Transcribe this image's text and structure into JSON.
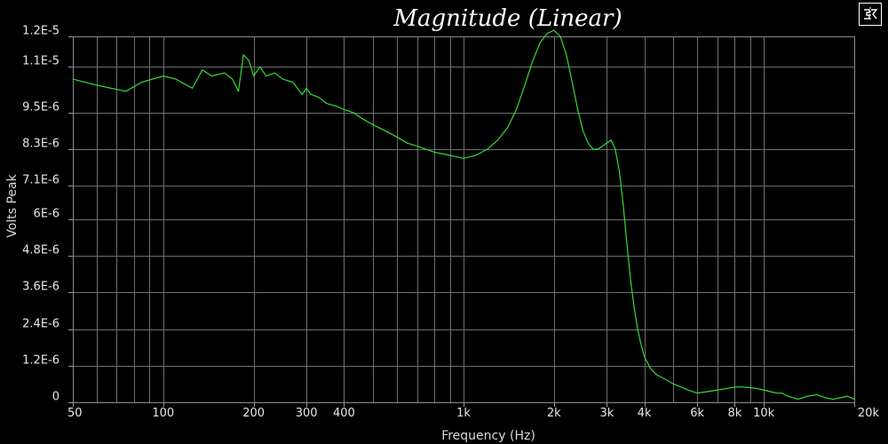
{
  "chart_data": {
    "type": "line",
    "title": "Magnitude (Linear)",
    "xlabel": "Frequency (Hz)",
    "ylabel": "Volts Peak",
    "xscale": "log",
    "xlim": [
      50,
      20000
    ],
    "ylim": [
      0,
      1.2e-05
    ],
    "grid": true,
    "x_ticks_labeled": [
      {
        "value": 50,
        "label": "50"
      },
      {
        "value": 100,
        "label": "100"
      },
      {
        "value": 200,
        "label": "200"
      },
      {
        "value": 300,
        "label": "300"
      },
      {
        "value": 400,
        "label": "400"
      },
      {
        "value": 1000,
        "label": "1k"
      },
      {
        "value": 2000,
        "label": "2k"
      },
      {
        "value": 3000,
        "label": "3k"
      },
      {
        "value": 4000,
        "label": "4k"
      },
      {
        "value": 6000,
        "label": "6k"
      },
      {
        "value": 8000,
        "label": "8k"
      },
      {
        "value": 10000,
        "label": "10k"
      },
      {
        "value": 20000,
        "label": "20k"
      }
    ],
    "x_gridlines": [
      50,
      60,
      70,
      80,
      90,
      100,
      200,
      300,
      400,
      500,
      600,
      700,
      800,
      900,
      1000,
      2000,
      3000,
      4000,
      5000,
      6000,
      7000,
      8000,
      9000,
      10000,
      20000
    ],
    "y_ticks": [
      {
        "value": 0,
        "label": "0"
      },
      {
        "value": 1.2e-06,
        "label": "1.2E-6"
      },
      {
        "value": 2.4e-06,
        "label": "2.4E-6"
      },
      {
        "value": 3.6e-06,
        "label": "3.6E-6"
      },
      {
        "value": 4.8e-06,
        "label": "4.8E-6"
      },
      {
        "value": 6e-06,
        "label": "6E-6"
      },
      {
        "value": 7.1e-06,
        "label": "7.1E-6"
      },
      {
        "value": 8.3e-06,
        "label": "8.3E-6"
      },
      {
        "value": 9.5e-06,
        "label": "9.5E-6"
      },
      {
        "value": 1.1e-05,
        "label": "1.1E-5"
      },
      {
        "value": 1.2e-05,
        "label": "1.2E-5"
      }
    ],
    "series": [
      {
        "color": "#33dd33",
        "x": [
          50,
          60,
          75,
          85,
          100,
          110,
          125,
          135,
          145,
          160,
          170,
          178,
          185,
          193,
          200,
          210,
          220,
          235,
          250,
          270,
          290,
          300,
          310,
          330,
          350,
          380,
          400,
          430,
          460,
          500,
          550,
          600,
          650,
          700,
          800,
          900,
          1000,
          1100,
          1200,
          1300,
          1400,
          1500,
          1600,
          1700,
          1800,
          1900,
          2000,
          2100,
          2200,
          2300,
          2400,
          2500,
          2600,
          2700,
          2800,
          2900,
          3000,
          3100,
          3200,
          3300,
          3400,
          3500,
          3600,
          3700,
          3800,
          3900,
          4000,
          4200,
          4400,
          4600,
          4800,
          5000,
          5300,
          5600,
          6000,
          6500,
          7000,
          7500,
          8000,
          8500,
          9000,
          9500,
          10000,
          10500,
          11000,
          11500,
          12000,
          12500,
          13000,
          14000,
          15000,
          16000,
          17000,
          18000,
          19000,
          20000
        ],
        "y": [
          1.06e-05,
          1.04e-05,
          1.02e-05,
          1.05e-05,
          1.07e-05,
          1.06e-05,
          1.03e-05,
          1.09e-05,
          1.07e-05,
          1.08e-05,
          1.06e-05,
          1.02e-05,
          1.14e-05,
          1.12e-05,
          1.07e-05,
          1.1e-05,
          1.07e-05,
          1.08e-05,
          1.06e-05,
          1.05e-05,
          1.01e-05,
          1.03e-05,
          1.01e-05,
          1e-05,
          9.8e-06,
          9.7e-06,
          9.6e-06,
          9.5e-06,
          9.3e-06,
          9.1e-06,
          8.9e-06,
          8.7e-06,
          8.5e-06,
          8.4e-06,
          8.2e-06,
          8.1e-06,
          8e-06,
          8.1e-06,
          8.3e-06,
          8.6e-06,
          9e-06,
          9.6e-06,
          1.04e-05,
          1.12e-05,
          1.18e-05,
          1.21e-05,
          1.22e-05,
          1.2e-05,
          1.14e-05,
          1.05e-05,
          9.6e-06,
          8.9e-06,
          8.5e-06,
          8.3e-06,
          8.3e-06,
          8.4e-06,
          8.5e-06,
          8.6e-06,
          8.3e-06,
          7.6e-06,
          6.5e-06,
          5.2e-06,
          4e-06,
          3.1e-06,
          2.4e-06,
          1.9e-06,
          1.5e-06,
          1.1e-06,
          9e-07,
          8e-07,
          7e-07,
          6e-07,
          5e-07,
          4e-07,
          3e-07,
          3.5e-07,
          4e-07,
          4.5e-07,
          5e-07,
          5e-07,
          4.8e-07,
          4.5e-07,
          4e-07,
          3.5e-07,
          3e-07,
          3e-07,
          2e-07,
          1.5e-07,
          1e-07,
          2e-07,
          2.5e-07,
          1.5e-07,
          1e-07,
          1.5e-07,
          2e-07,
          1e-07
        ]
      }
    ]
  },
  "colors": {
    "background": "#000000",
    "grid": "#6e6e6e",
    "frame": "#8a8a8a",
    "series": "#33dd33",
    "text": "#e6e6e6"
  },
  "menu_button": {
    "icon": "settings-glyph-icon"
  }
}
